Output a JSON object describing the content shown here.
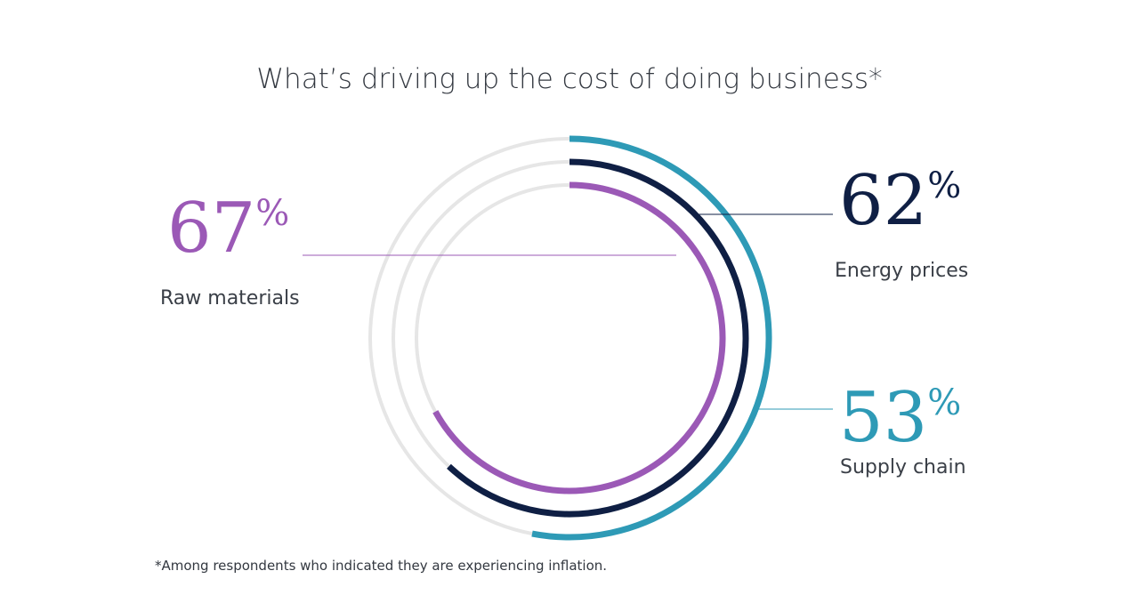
{
  "chart_data": {
    "type": "radial-bar",
    "title": "What’s driving up the cost of doing business*",
    "categories": [
      "Supply chain",
      "Energy prices",
      "Raw materials"
    ],
    "values": [
      53,
      62,
      67
    ],
    "value_labels": [
      "53",
      "62",
      "67"
    ],
    "percent_symbol": "%",
    "scale_max": 100,
    "colors": [
      "#2e9ab6",
      "#0f1f44",
      "#9b59b6"
    ],
    "track_color": "#e6e6e6",
    "footnote": "*Among respondents who indicated they are experiencing inflation."
  }
}
